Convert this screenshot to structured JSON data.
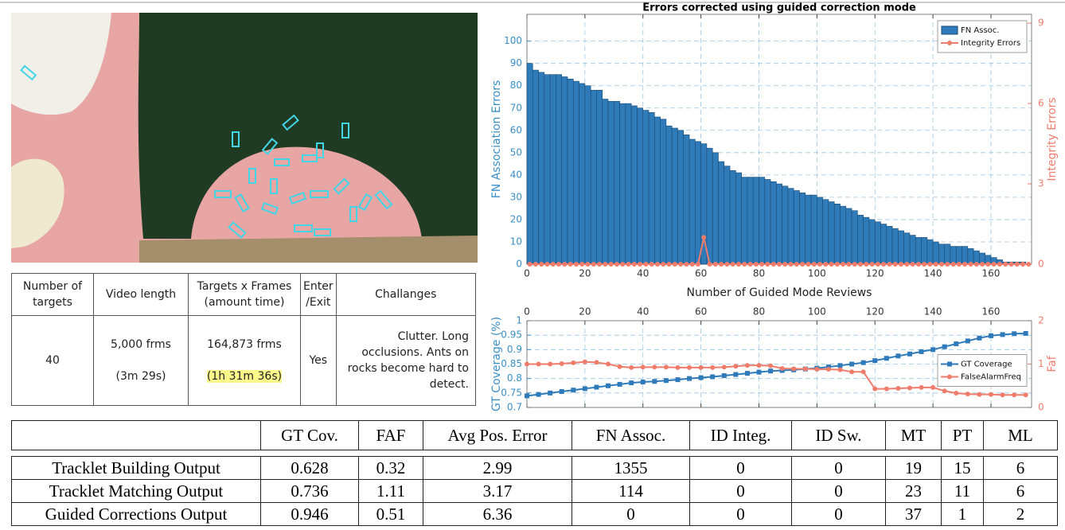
{
  "chart_data": [
    {
      "type": "bar",
      "title": "Errors corrected using guided correction mode",
      "xlabel": "Number of Guided Mode Reviews",
      "ylabel": "FN Association Errors",
      "y2label": "Integrity Errors",
      "x": [
        1,
        3,
        5,
        7,
        9,
        11,
        13,
        15,
        17,
        19,
        21,
        23,
        25,
        27,
        29,
        31,
        33,
        35,
        37,
        39,
        41,
        43,
        45,
        47,
        49,
        51,
        53,
        55,
        57,
        59,
        61,
        63,
        65,
        67,
        69,
        71,
        73,
        75,
        77,
        79,
        81,
        83,
        85,
        87,
        89,
        91,
        93,
        95,
        97,
        99,
        101,
        103,
        105,
        107,
        109,
        111,
        113,
        115,
        117,
        119,
        121,
        123,
        125,
        127,
        129,
        131,
        133,
        135,
        137,
        139,
        141,
        143,
        145,
        147,
        149,
        151,
        153,
        155,
        157,
        159,
        161,
        163,
        165,
        167,
        169,
        171,
        173
      ],
      "series": [
        {
          "name": "FN Assoc.",
          "type": "bar",
          "color": "#2f7ab9",
          "values": [
            90,
            87,
            86,
            85,
            85,
            85,
            84,
            83,
            82,
            81,
            80,
            78,
            78,
            74,
            73,
            73,
            72,
            72,
            71,
            70,
            69,
            68,
            66,
            65,
            62,
            61,
            60,
            58,
            56,
            55,
            54,
            52,
            50,
            46,
            44,
            42,
            41,
            39,
            39,
            39,
            39,
            38,
            37,
            36,
            35,
            34,
            33,
            32,
            31,
            31,
            30,
            29,
            28,
            27,
            26,
            25,
            24,
            22,
            21,
            20,
            19,
            18,
            17,
            16,
            15,
            14,
            13,
            12,
            12,
            11,
            10,
            9,
            9,
            8,
            8,
            8,
            7,
            6,
            5,
            4,
            3,
            2,
            1,
            1,
            1,
            1,
            0
          ]
        },
        {
          "name": "Integrity Errors",
          "type": "line",
          "marker": "circle",
          "color": "#f07c6c",
          "axis": "y2",
          "values": [
            0,
            0,
            0,
            0,
            0,
            0,
            0,
            0,
            0,
            0,
            0,
            0,
            0,
            0,
            0,
            0,
            0,
            0,
            0,
            0,
            0,
            0,
            0,
            0,
            0,
            0,
            0,
            0,
            0,
            0,
            1,
            0,
            0,
            0,
            0,
            0,
            0,
            0,
            0,
            0,
            0,
            0,
            0,
            0,
            0,
            0,
            0,
            0,
            0,
            0,
            0,
            0,
            0,
            0,
            0,
            0,
            0,
            0,
            0,
            0,
            0,
            0,
            0,
            0,
            0,
            0,
            0,
            0,
            0,
            0,
            0,
            0,
            0,
            0,
            0,
            0,
            0,
            0,
            0,
            0,
            0,
            0,
            0,
            0,
            0,
            0,
            0
          ]
        }
      ],
      "xlim": [
        0,
        174
      ],
      "xticks": [
        0,
        20,
        40,
        60,
        80,
        100,
        120,
        140,
        160
      ],
      "ylim": [
        0,
        112
      ],
      "yticks": [
        0,
        10,
        20,
        30,
        40,
        50,
        60,
        70,
        80,
        90,
        100
      ],
      "y2lim": [
        0,
        9.33
      ],
      "y2ticks": [
        0,
        3,
        6,
        9
      ],
      "grid": true,
      "legend": "upper right",
      "xaxis": "bottom",
      "ycolor": "#3a8fc7",
      "y2color": "#f07c6c"
    },
    {
      "type": "line",
      "ylabel": "GT Coverage (%)",
      "y2label": "Faf",
      "x": [
        0,
        4,
        8,
        12,
        16,
        20,
        24,
        28,
        32,
        36,
        40,
        44,
        48,
        52,
        56,
        60,
        64,
        68,
        72,
        76,
        80,
        84,
        88,
        92,
        96,
        100,
        104,
        108,
        112,
        116,
        120,
        124,
        128,
        132,
        136,
        140,
        144,
        148,
        152,
        156,
        160,
        164,
        168,
        172
      ],
      "series": [
        {
          "name": "GT Coverage",
          "marker": "square",
          "color": "#2f7ab9",
          "values": [
            0.74,
            0.745,
            0.75,
            0.755,
            0.76,
            0.765,
            0.77,
            0.775,
            0.78,
            0.785,
            0.788,
            0.79,
            0.793,
            0.796,
            0.8,
            0.803,
            0.806,
            0.81,
            0.814,
            0.818,
            0.822,
            0.826,
            0.828,
            0.83,
            0.833,
            0.836,
            0.84,
            0.845,
            0.85,
            0.855,
            0.862,
            0.87,
            0.878,
            0.885,
            0.893,
            0.9,
            0.91,
            0.92,
            0.93,
            0.94,
            0.948,
            0.952,
            0.955,
            0.956
          ]
        },
        {
          "name": "FalseAlarmFreq",
          "marker": "circle",
          "color": "#f07c6c",
          "axis": "y2",
          "values": [
            1.0,
            1.0,
            1.0,
            1.01,
            1.03,
            1.05,
            1.04,
            1.0,
            0.94,
            0.92,
            0.93,
            0.93,
            0.93,
            0.92,
            0.92,
            0.92,
            0.92,
            0.93,
            0.95,
            0.97,
            0.97,
            0.96,
            0.9,
            0.89,
            0.89,
            0.88,
            0.88,
            0.87,
            0.82,
            0.82,
            0.43,
            0.43,
            0.44,
            0.45,
            0.46,
            0.46,
            0.38,
            0.33,
            0.31,
            0.3,
            0.3,
            0.29,
            0.29,
            0.29
          ]
        }
      ],
      "xlim": [
        0,
        174
      ],
      "xticks": [
        0,
        20,
        40,
        60,
        80,
        100,
        120,
        140,
        160
      ],
      "ylim": [
        0.7,
        1
      ],
      "yticks": [
        0.7,
        0.75,
        0.8,
        0.85,
        0.9,
        0.95,
        1
      ],
      "y2lim": [
        0,
        2
      ],
      "y2ticks": [
        0,
        1,
        2
      ],
      "grid": true,
      "legend": "right",
      "xaxis": "top",
      "ycolor": "#3a8fc7",
      "y2color": "#f07c6c"
    }
  ],
  "info_table": {
    "header": [
      "Number of targets",
      "Video length",
      [
        "Targets x Frames",
        "(amount time)"
      ],
      "Enter /Exit",
      "Challanges"
    ],
    "row": [
      40,
      [
        "5,000 frms",
        "(3m 29s)"
      ],
      [
        "164,873 frms",
        "(1h 31m 36s)"
      ],
      "Yes",
      "Clutter. Long occlusions. Ants on rocks become hard to detect."
    ]
  },
  "results_table": {
    "header": [
      "GT Cov.",
      "FAF",
      "Avg Pos. Error",
      "FN Assoc.",
      "ID Integ.",
      "ID Sw.",
      "MT",
      "PT",
      "ML"
    ],
    "rows": [
      [
        "Tracklet Building Output",
        0.628,
        0.32,
        2.99,
        1355,
        0,
        0,
        19,
        15,
        6
      ],
      [
        "Tracklet Matching Output",
        0.736,
        1.11,
        3.17,
        114,
        0,
        0,
        23,
        11,
        6
      ],
      [
        "Guided Corrections Output",
        0.946,
        0.51,
        6.36,
        0,
        0,
        0,
        37,
        1,
        2
      ]
    ]
  }
}
